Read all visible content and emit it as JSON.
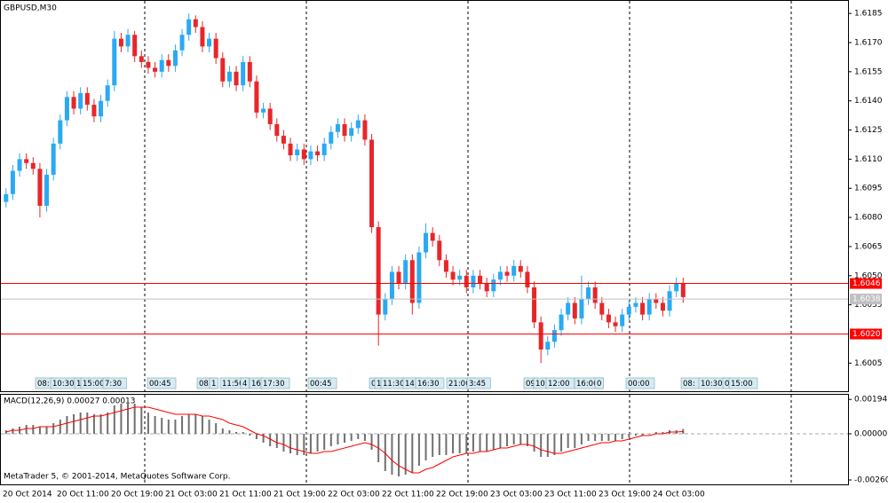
{
  "chart_data": [
    {
      "type": "candlestick",
      "title": "GBPUSD,M30",
      "categories": [
        "20 Oct 2014",
        null,
        null,
        null,
        null,
        null,
        null,
        null,
        "20 Oct 11:00",
        null,
        null,
        null,
        null,
        null,
        null,
        null,
        "20 Oct 19:00",
        null,
        null,
        null,
        null,
        null,
        null,
        null,
        "21 Oct 03:00",
        null,
        null,
        null,
        null,
        null,
        null,
        null,
        "21 Oct 11:00",
        null,
        null,
        null,
        null,
        null,
        null,
        null,
        "21 Oct 19:00",
        null,
        null,
        null,
        null,
        null,
        null,
        null,
        "22 Oct 03:00",
        null,
        null,
        null,
        null,
        null,
        null,
        null,
        "22 Oct 11:00",
        null,
        null,
        null,
        null,
        null,
        null,
        null,
        "22 Oct 19:00",
        null,
        null,
        null,
        null,
        null,
        null,
        null,
        "23 Oct 03:00",
        null,
        null,
        null,
        null,
        null,
        null,
        null,
        "23 Oct 11:00",
        null,
        null,
        null,
        null,
        null,
        null,
        null,
        "23 Oct 19:00",
        null,
        null,
        null,
        null,
        null,
        null,
        null,
        "24 Oct 03:00",
        null,
        null,
        null,
        null
      ],
      "open": [
        1.6088,
        1.6092,
        1.6104,
        1.611,
        1.6108,
        1.6105,
        1.6086,
        1.6102,
        1.6118,
        1.613,
        1.6142,
        1.6136,
        1.6144,
        1.6138,
        1.6132,
        1.614,
        1.6148,
        1.6172,
        1.6168,
        1.6174,
        1.6163,
        1.616,
        1.6157,
        1.6155,
        1.6161,
        1.6158,
        1.6166,
        1.6174,
        1.6182,
        1.6178,
        1.6168,
        1.6172,
        1.6162,
        1.615,
        1.6155,
        1.6148,
        1.616,
        1.615,
        1.6134,
        1.6136,
        1.6128,
        1.6122,
        1.6118,
        1.6112,
        1.6115,
        1.611,
        1.6114,
        1.6112,
        1.6118,
        1.6124,
        1.6128,
        1.6122,
        1.6126,
        1.613,
        1.612,
        1.6075,
        1.603,
        1.6038,
        1.6052,
        1.6046,
        1.6058,
        1.6036,
        1.6062,
        1.6072,
        1.6068,
        1.6058,
        1.6052,
        1.6048,
        1.605,
        1.6044,
        1.605,
        1.6046,
        1.6042,
        1.6048,
        1.6052,
        1.605,
        1.6055,
        1.6052,
        1.6044,
        1.6026,
        1.6012,
        1.6016,
        1.6022,
        1.603,
        1.6036,
        1.6028,
        1.6038,
        1.6044,
        1.6036,
        1.603,
        1.6026,
        1.6024,
        1.603,
        1.6034,
        1.6036,
        1.603,
        1.6038,
        1.6036,
        1.6032,
        1.6042,
        1.6046
      ],
      "high": [
        1.6095,
        1.6107,
        1.6113,
        1.6113,
        1.6111,
        1.6108,
        1.6105,
        1.6121,
        1.6133,
        1.6145,
        1.6145,
        1.6147,
        1.6147,
        1.6141,
        1.6143,
        1.6151,
        1.6176,
        1.6175,
        1.6177,
        1.6176,
        1.6166,
        1.6163,
        1.616,
        1.6164,
        1.6164,
        1.6169,
        1.6177,
        1.6185,
        1.6184,
        1.6181,
        1.6175,
        1.6175,
        1.6165,
        1.6158,
        1.6158,
        1.6163,
        1.6163,
        1.6153,
        1.6139,
        1.6139,
        1.6131,
        1.6125,
        1.6121,
        1.6118,
        1.6118,
        1.6117,
        1.6117,
        1.6121,
        1.6127,
        1.6131,
        1.6131,
        1.6129,
        1.6133,
        1.6133,
        1.6123,
        1.6078,
        1.6041,
        1.6055,
        1.6055,
        1.6061,
        1.6061,
        1.6065,
        1.6077,
        1.6075,
        1.6071,
        1.6061,
        1.6055,
        1.6053,
        1.6053,
        1.6053,
        1.6053,
        1.6049,
        1.6051,
        1.6055,
        1.6055,
        1.6058,
        1.6058,
        1.6055,
        1.6047,
        1.6029,
        1.6019,
        1.6025,
        1.6033,
        1.6039,
        1.6039,
        1.605,
        1.6047,
        1.6047,
        1.6039,
        1.6033,
        1.6029,
        1.6033,
        1.6037,
        1.6039,
        1.6039,
        1.6041,
        1.6041,
        1.6039,
        1.6045,
        1.6049,
        1.6049
      ],
      "low": [
        1.6085,
        1.6089,
        1.6101,
        1.6105,
        1.6102,
        1.608,
        1.6083,
        1.6099,
        1.6115,
        1.6127,
        1.6133,
        1.6133,
        1.6135,
        1.6129,
        1.6129,
        1.6137,
        1.6145,
        1.6165,
        1.6165,
        1.616,
        1.6157,
        1.6154,
        1.6152,
        1.6152,
        1.6155,
        1.6155,
        1.6163,
        1.6171,
        1.6175,
        1.6165,
        1.6165,
        1.6159,
        1.6147,
        1.6147,
        1.6145,
        1.6145,
        1.6147,
        1.6131,
        1.6131,
        1.6125,
        1.6119,
        1.6115,
        1.6109,
        1.6109,
        1.6107,
        1.6107,
        1.6109,
        1.6109,
        1.6115,
        1.6121,
        1.6119,
        1.6119,
        1.6123,
        1.6117,
        1.6072,
        1.6014,
        1.6027,
        1.6035,
        1.6043,
        1.6043,
        1.603,
        1.6033,
        1.6059,
        1.6065,
        1.6055,
        1.6049,
        1.6045,
        1.6045,
        1.6041,
        1.6041,
        1.6043,
        1.6039,
        1.6039,
        1.6045,
        1.6047,
        1.6047,
        1.6049,
        1.6041,
        1.6023,
        1.6005,
        1.6009,
        1.6013,
        1.6019,
        1.6027,
        1.6025,
        1.6025,
        1.6035,
        1.6033,
        1.6027,
        1.6023,
        1.6021,
        1.6021,
        1.6027,
        1.6031,
        1.6027,
        1.6027,
        1.6033,
        1.6029,
        1.6029,
        1.6039,
        1.6036
      ],
      "close": [
        1.6092,
        1.6104,
        1.611,
        1.6108,
        1.6105,
        1.6086,
        1.6102,
        1.6118,
        1.613,
        1.6142,
        1.6136,
        1.6144,
        1.6138,
        1.6132,
        1.614,
        1.6148,
        1.6172,
        1.6168,
        1.6174,
        1.6163,
        1.616,
        1.6157,
        1.6155,
        1.6161,
        1.6158,
        1.6166,
        1.6174,
        1.6182,
        1.6178,
        1.6168,
        1.6172,
        1.6162,
        1.615,
        1.6155,
        1.6148,
        1.616,
        1.615,
        1.6134,
        1.6136,
        1.6128,
        1.6122,
        1.6118,
        1.6112,
        1.6115,
        1.611,
        1.6114,
        1.6112,
        1.6118,
        1.6124,
        1.6128,
        1.6122,
        1.6126,
        1.613,
        1.612,
        1.6075,
        1.603,
        1.6038,
        1.6052,
        1.6046,
        1.6058,
        1.6036,
        1.6062,
        1.6072,
        1.6068,
        1.6058,
        1.6052,
        1.6048,
        1.605,
        1.6044,
        1.605,
        1.6046,
        1.6042,
        1.6048,
        1.6052,
        1.605,
        1.6055,
        1.6052,
        1.6044,
        1.6026,
        1.6012,
        1.6016,
        1.6022,
        1.603,
        1.6036,
        1.6028,
        1.6038,
        1.6044,
        1.6036,
        1.603,
        1.6026,
        1.6024,
        1.603,
        1.6034,
        1.6036,
        1.603,
        1.6038,
        1.6036,
        1.6032,
        1.6042,
        1.6046,
        1.6039
      ],
      "up_color": "#2aa9f4",
      "down_color": "#e8262a",
      "ylim": [
        1.5991,
        1.6191
      ],
      "yticks": [
        1.6185,
        {
          "value": 1.617,
          "label": "1.6170"
        },
        1.6155,
        {
          "value": 1.614,
          "label": "1.6140"
        },
        1.6125,
        {
          "value": 1.611,
          "label": "1.6110"
        },
        1.6095,
        {
          "value": 1.608,
          "label": "1.6080"
        },
        1.6065,
        {
          "value": 1.605,
          "label": "1.6050"
        },
        1.6035,
        1.6005
      ],
      "hlines": [
        {
          "value": 1.6046,
          "label": "1.6046",
          "color": "#ff0000"
        },
        {
          "value": 1.6038,
          "label": "1.6038",
          "color": "#c0c0c0"
        },
        {
          "value": 1.602,
          "label": "1.6020",
          "color": "#ff0000"
        }
      ],
      "events": [
        "08:",
        "10:30",
        "1",
        "15:00",
        "7:30",
        "00:45",
        "08:",
        "1",
        "11:50",
        "4",
        "16",
        "17:30",
        "00:45",
        "0",
        "1",
        "11:30",
        "14:",
        "16:30",
        "21:00",
        "3:45",
        "09",
        "10",
        "12:00",
        "16:00",
        "0",
        "00:00",
        "08:",
        "10:30",
        "0",
        "15:00"
      ],
      "grid": true
    },
    {
      "type": "macd",
      "label": "MACD(12,26,9) 0.00027 0.00013",
      "annotation": "MetaTrader 5, © 2001-2014, MetaQuotes Software Corp.",
      "histogram": [
        0.0002,
        0.0003,
        0.0004,
        0.0005,
        0.0005,
        0.0004,
        0.0004,
        0.0006,
        0.0008,
        0.001,
        0.0011,
        0.0012,
        0.0012,
        0.0011,
        0.0011,
        0.0012,
        0.0016,
        0.0017,
        0.0018,
        0.0017,
        0.0015,
        0.0012,
        0.001,
        0.0009,
        0.0008,
        0.0008,
        0.001,
        0.0011,
        0.0011,
        0.001,
        0.0008,
        0.0006,
        0.0003,
        0.0002,
        0.0001,
        0.0001,
        -0.0001,
        -0.0003,
        -0.0005,
        -0.0007,
        -0.0008,
        -0.001,
        -0.0011,
        -0.0012,
        -0.0012,
        -0.0011,
        -0.001,
        -0.0009,
        -0.0007,
        -0.0006,
        -0.0005,
        -0.0004,
        -0.0003,
        -0.0004,
        -0.0009,
        -0.0016,
        -0.0021,
        -0.0023,
        -0.0024,
        -0.0023,
        -0.0022,
        -0.0018,
        -0.0015,
        -0.0013,
        -0.0012,
        -0.0012,
        -0.0011,
        -0.0011,
        -0.0011,
        -0.001,
        -0.001,
        -0.001,
        -0.0009,
        -0.0008,
        -0.0007,
        -0.0006,
        -0.0006,
        -0.0007,
        -0.001,
        -0.0013,
        -0.0013,
        -0.0012,
        -0.001,
        -0.0008,
        -0.0008,
        -0.0006,
        -0.0004,
        -0.0004,
        -0.0004,
        -0.0004,
        -0.0004,
        -0.0003,
        -0.0002,
        -0.0001,
        -0.0001,
        0,
        0.0001,
        0.0001,
        0.0002,
        0.0002,
        0.00027
      ],
      "signal": [
        0.0001,
        0.0002,
        0.0002,
        0.0003,
        0.0003,
        0.0004,
        0.0004,
        0.0004,
        0.0005,
        0.0006,
        0.0007,
        0.0008,
        0.0009,
        0.001,
        0.001,
        0.0011,
        0.0012,
        0.0013,
        0.0014,
        0.0015,
        0.0015,
        0.0015,
        0.0014,
        0.0013,
        0.0012,
        0.0011,
        0.0011,
        0.0011,
        0.0011,
        0.001,
        0.001,
        0.0009,
        0.0008,
        0.0006,
        0.0005,
        0.0004,
        0.0002,
        0,
        -0.0001,
        -0.0003,
        -0.0005,
        -0.0006,
        -0.0008,
        -0.0009,
        -0.001,
        -0.0011,
        -0.0011,
        -0.001,
        -0.001,
        -0.0009,
        -0.0008,
        -0.0007,
        -0.0006,
        -0.0005,
        -0.0006,
        -0.0008,
        -0.0011,
        -0.0015,
        -0.0018,
        -0.002,
        -0.0022,
        -0.0022,
        -0.002,
        -0.0019,
        -0.0017,
        -0.0015,
        -0.0013,
        -0.0012,
        -0.0011,
        -0.0011,
        -0.001,
        -0.001,
        -0.0009,
        -0.0008,
        -0.0008,
        -0.0007,
        -0.0006,
        -0.0006,
        -0.0007,
        -0.0009,
        -0.001,
        -0.0011,
        -0.0011,
        -0.001,
        -0.0009,
        -0.0008,
        -0.0007,
        -0.0006,
        -0.0005,
        -0.0005,
        -0.0004,
        -0.0004,
        -0.0003,
        -0.0002,
        -0.0001,
        -0.0001,
        0,
        0,
        0.0001,
        0.0001,
        0.00013
      ],
      "histogram_color": "#707070",
      "signal_color": "#ff0000",
      "ylim": [
        -0.00285,
        0.0022
      ],
      "yticks": [
        0.00194,
        {
          "value": 0,
          "label": "0.00000"
        },
        {
          "value": -0.0026,
          "label": "-0.00260"
        }
      ]
    }
  ]
}
